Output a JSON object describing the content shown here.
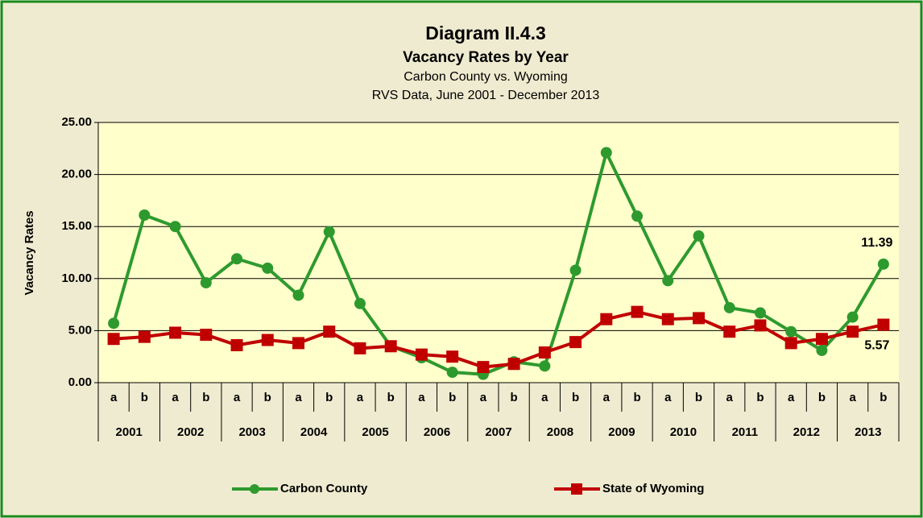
{
  "chart_data": {
    "type": "line",
    "title": "Diagram II.4.3",
    "subtitle": "Vacancy Rates by Year",
    "subtitle2": "Carbon County vs. Wyoming",
    "subtitle3": "RVS Data, June 2001 - December 2013",
    "y_label": "Vacancy Rates",
    "categories": [
      "a",
      "b",
      "a",
      "b",
      "a",
      "b",
      "a",
      "b",
      "a",
      "b",
      "a",
      "b",
      "a",
      "b",
      "a",
      "b",
      "a",
      "b",
      "a",
      "b",
      "a",
      "b",
      "a",
      "b",
      "a",
      "b"
    ],
    "groups": [
      "2001",
      "2002",
      "2003",
      "2004",
      "2005",
      "2006",
      "2007",
      "2008",
      "2009",
      "2010",
      "2011",
      "2012",
      "2013"
    ],
    "series": [
      {
        "name": "Carbon County",
        "color": "#2e9a2e",
        "marker": "circle",
        "values": [
          5.7,
          16.1,
          15.0,
          9.6,
          11.9,
          11.0,
          8.4,
          14.5,
          7.6,
          3.5,
          2.4,
          1.0,
          0.8,
          2.0,
          1.6,
          10.8,
          22.1,
          16.0,
          9.8,
          14.1,
          7.2,
          6.7,
          4.9,
          3.1,
          6.3,
          11.39
        ]
      },
      {
        "name": "State of Wyoming",
        "color": "#c00000",
        "marker": "square",
        "values": [
          4.2,
          4.4,
          4.8,
          4.6,
          3.6,
          4.1,
          3.8,
          4.9,
          3.3,
          3.5,
          2.7,
          2.5,
          1.5,
          1.8,
          2.9,
          3.9,
          6.1,
          6.8,
          6.1,
          6.2,
          4.9,
          5.5,
          3.8,
          4.2,
          4.9,
          5.57
        ]
      }
    ],
    "data_labels": "last",
    "ylim": [
      0,
      25
    ],
    "yticks": [
      {
        "value": 0,
        "label": "0.00"
      },
      {
        "value": 5,
        "label": "5.00"
      },
      {
        "value": 10,
        "label": "10.00"
      },
      {
        "value": 15,
        "label": "15.00"
      },
      {
        "value": 20,
        "label": "20.00"
      },
      {
        "value": 25,
        "label": "25.00"
      }
    ],
    "grid": true,
    "legend": "bottom"
  }
}
